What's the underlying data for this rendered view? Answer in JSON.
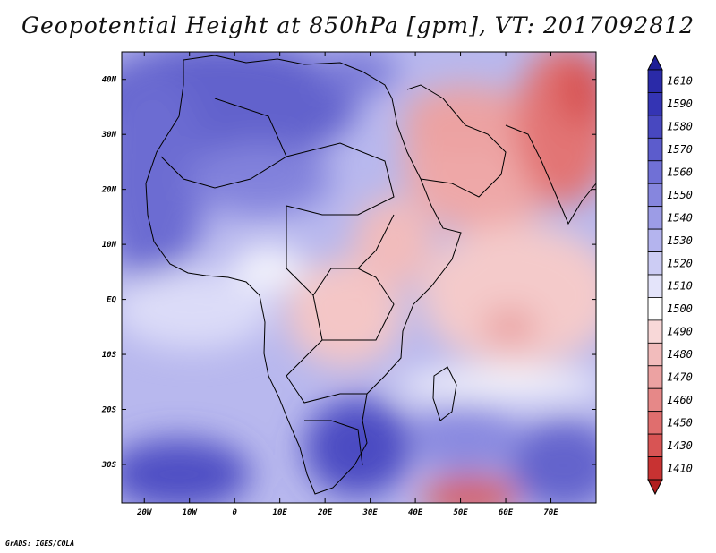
{
  "title": "Geopotential Height at 850hPa [gpm], VT: 2017092812",
  "credit": "GrADS: IGES/COLA",
  "map": {
    "lon_range": [
      -25,
      80
    ],
    "lat_range": [
      -37,
      45
    ],
    "lat_ticks": [
      {
        "value": 40,
        "label": "40N"
      },
      {
        "value": 30,
        "label": "30N"
      },
      {
        "value": 20,
        "label": "20N"
      },
      {
        "value": 10,
        "label": "10N"
      },
      {
        "value": 0,
        "label": "EQ"
      },
      {
        "value": -10,
        "label": "10S"
      },
      {
        "value": -20,
        "label": "20S"
      },
      {
        "value": -30,
        "label": "30S"
      }
    ],
    "lon_ticks": [
      {
        "value": -20,
        "label": "20W"
      },
      {
        "value": -10,
        "label": "10W"
      },
      {
        "value": 0,
        "label": "0"
      },
      {
        "value": 10,
        "label": "10E"
      },
      {
        "value": 20,
        "label": "20E"
      },
      {
        "value": 30,
        "label": "30E"
      },
      {
        "value": 40,
        "label": "40E"
      },
      {
        "value": 50,
        "label": "50E"
      },
      {
        "value": 60,
        "label": "60E"
      },
      {
        "value": 70,
        "label": "70E"
      }
    ]
  },
  "colorbar": {
    "levels": [
      {
        "label": "1610",
        "color": "#2a2aa8"
      },
      {
        "label": "1590",
        "color": "#3434b4"
      },
      {
        "label": "1580",
        "color": "#4848c0"
      },
      {
        "label": "1570",
        "color": "#5c5ccc"
      },
      {
        "label": "1560",
        "color": "#7070d6"
      },
      {
        "label": "1550",
        "color": "#8686de"
      },
      {
        "label": "1540",
        "color": "#9c9ce6"
      },
      {
        "label": "1530",
        "color": "#b4b4ee"
      },
      {
        "label": "1520",
        "color": "#ccccf4"
      },
      {
        "label": "1510",
        "color": "#e4e4fa"
      },
      {
        "label": "1500",
        "color": "#ffffff"
      },
      {
        "label": "1490",
        "color": "#f8d8d8"
      },
      {
        "label": "1480",
        "color": "#f2bcbc"
      },
      {
        "label": "1470",
        "color": "#eca2a2"
      },
      {
        "label": "1460",
        "color": "#e68888"
      },
      {
        "label": "1450",
        "color": "#e06e6e"
      },
      {
        "label": "1430",
        "color": "#d85454"
      },
      {
        "label": "1410",
        "color": "#c83232"
      }
    ],
    "top_color": "#1e1e96",
    "bottom_color": "#b01e1e"
  }
}
